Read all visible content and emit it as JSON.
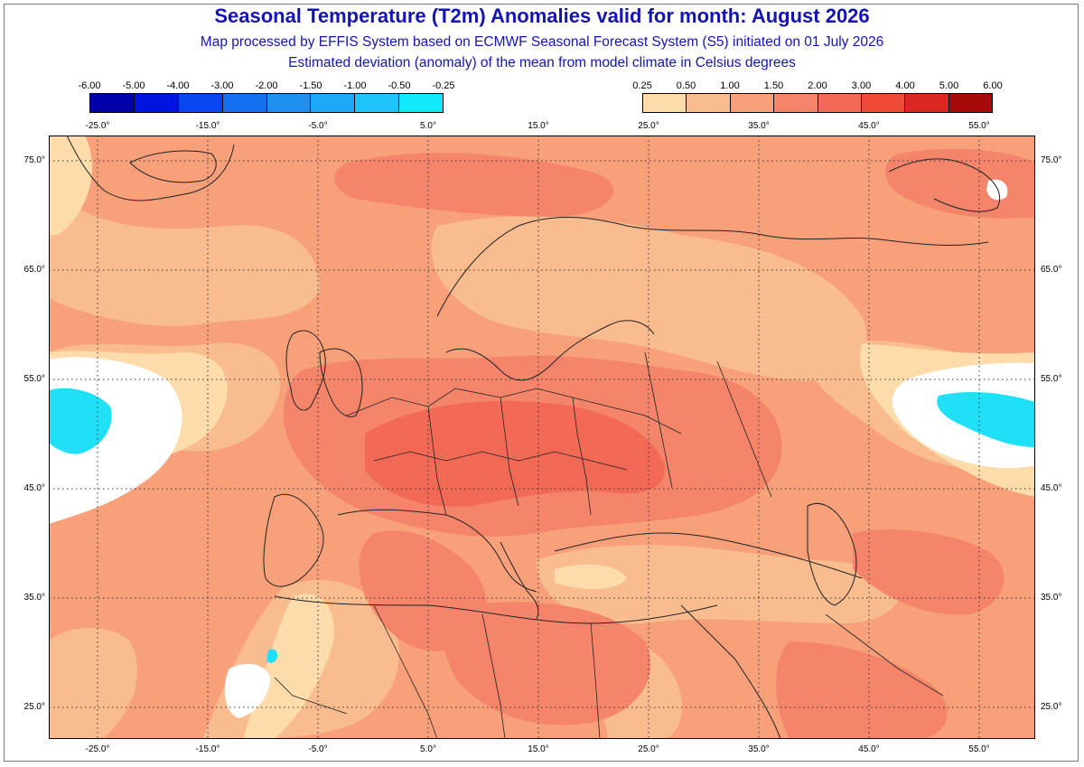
{
  "title": "Seasonal Temperature (T2m) Anomalies valid for month: August 2026",
  "subtitle1": "Map processed by EFFIS System based on ECMWF Seasonal Forecast System (S5) initiated on 01 July 2026",
  "subtitle2": "Estimated deviation (anomaly) of the mean from model climate in Celsius degrees",
  "legend_negative": {
    "labels": [
      "-6.00",
      "-5.00",
      "-4.00",
      "-3.00",
      "-2.00",
      "-1.50",
      "-1.00",
      "-0.50",
      "-0.25"
    ],
    "colors": [
      "#0000a8",
      "#0014e0",
      "#0a46f0",
      "#1470f0",
      "#1e8ef0",
      "#1ea8f5",
      "#1ec4fa",
      "#10e8fc"
    ]
  },
  "legend_positive": {
    "labels": [
      "0.25",
      "0.50",
      "1.00",
      "1.50",
      "2.00",
      "3.00",
      "4.00",
      "5.00",
      "6.00"
    ],
    "colors": [
      "#fcdcaa",
      "#f9bc8e",
      "#f7a07a",
      "#f5856a",
      "#f26a56",
      "#f04a38",
      "#dc2820",
      "#a80a0a"
    ]
  },
  "lon_ticks": [
    "-25.0°",
    "-15.0°",
    "-5.0°",
    "5.0°",
    "15.0°",
    "25.0°",
    "35.0°",
    "45.0°",
    "55.0°"
  ],
  "lat_ticks": [
    "75.0°",
    "65.0°",
    "55.0°",
    "45.0°",
    "35.0°",
    "25.0°"
  ],
  "map_colors": {
    "base": "#f7a07a",
    "pale": "#f9bc8e",
    "light": "#fcdcaa",
    "warm": "#f5856a",
    "hot": "#f26a56",
    "cold_white": "#ffffff",
    "cold_cyan": "#20e0f8",
    "border": "#222222",
    "grid": "#333333"
  }
}
